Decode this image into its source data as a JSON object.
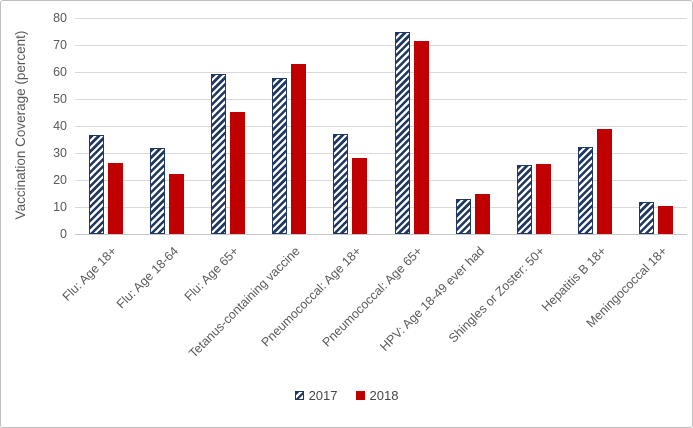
{
  "window": {
    "background": "#ffffff",
    "border_color": "#bfbfbf"
  },
  "chart_data": {
    "type": "bar",
    "title": "",
    "xlabel": "",
    "ylabel": "Vaccination Coverage (percent)",
    "ylim": [
      0,
      80
    ],
    "yticks": [
      0,
      10,
      20,
      30,
      40,
      50,
      60,
      70,
      80
    ],
    "grid": true,
    "legend_position": "bottom",
    "categories": [
      "Flu: Age 18+",
      "Flu: Age 18-64",
      "Flu: Age 65+",
      "Tetanus-containing vaccine",
      "Pneumococcal: Age 18+",
      "Pneumococcal: Age 65+",
      "HPV: Age 18-49 ever had",
      "Shingles or Zoster: 50+",
      "Hepatitis B 18+",
      "Meningococcal 18+"
    ],
    "series": [
      {
        "name": "2017",
        "fill": "hatched",
        "color": "#1f3864",
        "values": [
          36.7,
          31.7,
          59.4,
          57.6,
          36.9,
          74.7,
          12.8,
          25.5,
          32.3,
          11.8
        ]
      },
      {
        "name": "2018",
        "fill": "solid",
        "color": "#c00000",
        "values": [
          26.3,
          22.3,
          45.2,
          62.8,
          28.3,
          71.5,
          14.9,
          25.8,
          38.8,
          10.2
        ]
      }
    ],
    "styles": {
      "gridline_color": "#d9d9d9",
      "axis_line_color": "#c6c6c6",
      "tick_label_color": "#595959",
      "axis_title_color": "#595959",
      "legend_text_color": "#474747"
    }
  }
}
